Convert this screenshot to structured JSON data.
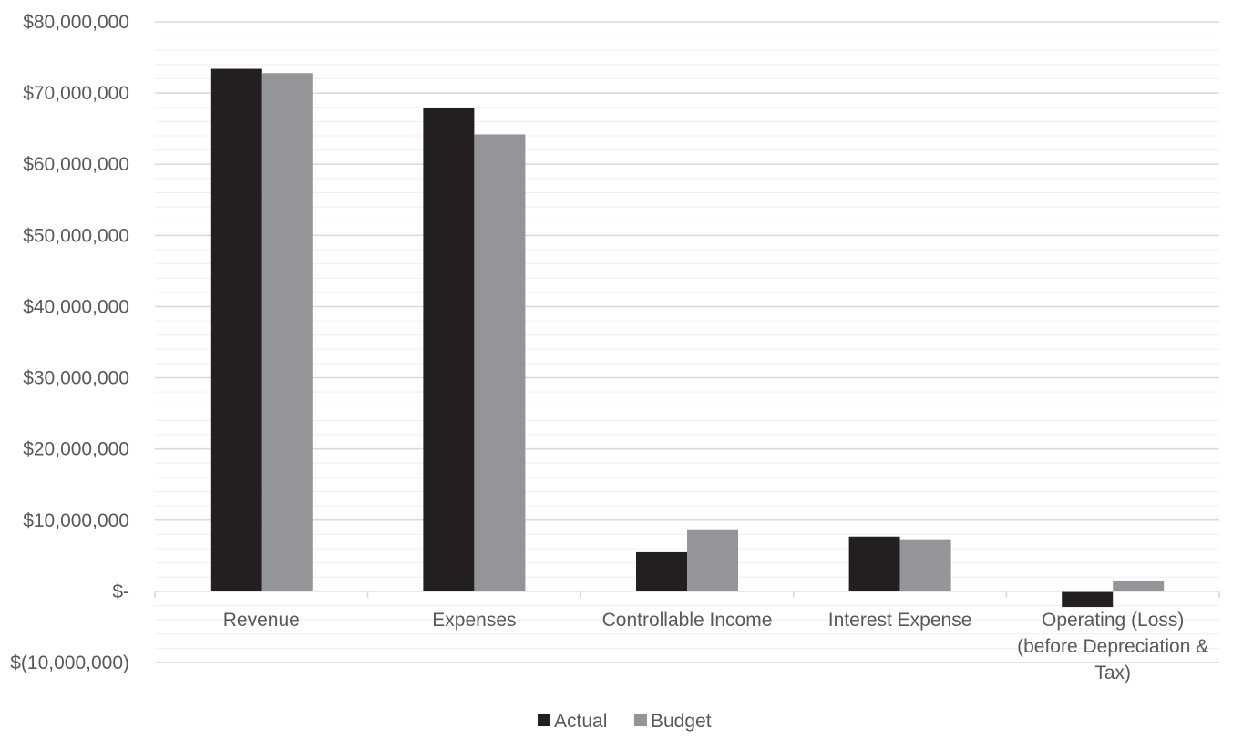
{
  "chart_data": {
    "type": "bar",
    "title": "",
    "xlabel": "",
    "ylabel": "",
    "categories": [
      [
        "Revenue"
      ],
      [
        "Expenses"
      ],
      [
        "Controllable Income"
      ],
      [
        "Interest Expense"
      ],
      [
        "Operating (Loss)",
        "(before Depreciation &",
        "Tax)"
      ]
    ],
    "series": [
      {
        "name": "Actual",
        "color": "#231f20",
        "values": [
          73400000,
          67900000,
          5500000,
          7700000,
          -2200000
        ]
      },
      {
        "name": "Budget",
        "color": "#939598",
        "values": [
          72800000,
          64200000,
          8600000,
          7200000,
          1400000
        ]
      }
    ],
    "ylim": [
      -10000000,
      80000000
    ],
    "yticks": [
      {
        "value": 80000000,
        "label": "$80,000,000"
      },
      {
        "value": 70000000,
        "label": "$70,000,000"
      },
      {
        "value": 60000000,
        "label": "$60,000,000"
      },
      {
        "value": 50000000,
        "label": "$50,000,000"
      },
      {
        "value": 40000000,
        "label": "$40,000,000"
      },
      {
        "value": 30000000,
        "label": "$30,000,000"
      },
      {
        "value": 20000000,
        "label": "$20,000,000"
      },
      {
        "value": 10000000,
        "label": "$10,000,000"
      },
      {
        "value": 0,
        "label": "$-"
      },
      {
        "value": -10000000,
        "label": "$(10,000,000)"
      }
    ],
    "minor_gridlines_per_major": 4,
    "grid": true,
    "legend": "bottom-center",
    "colors": {
      "major_grid": "#d9d9d9",
      "minor_grid": "#efefef",
      "axis": "#d9d9d9",
      "text": "#595959"
    }
  }
}
